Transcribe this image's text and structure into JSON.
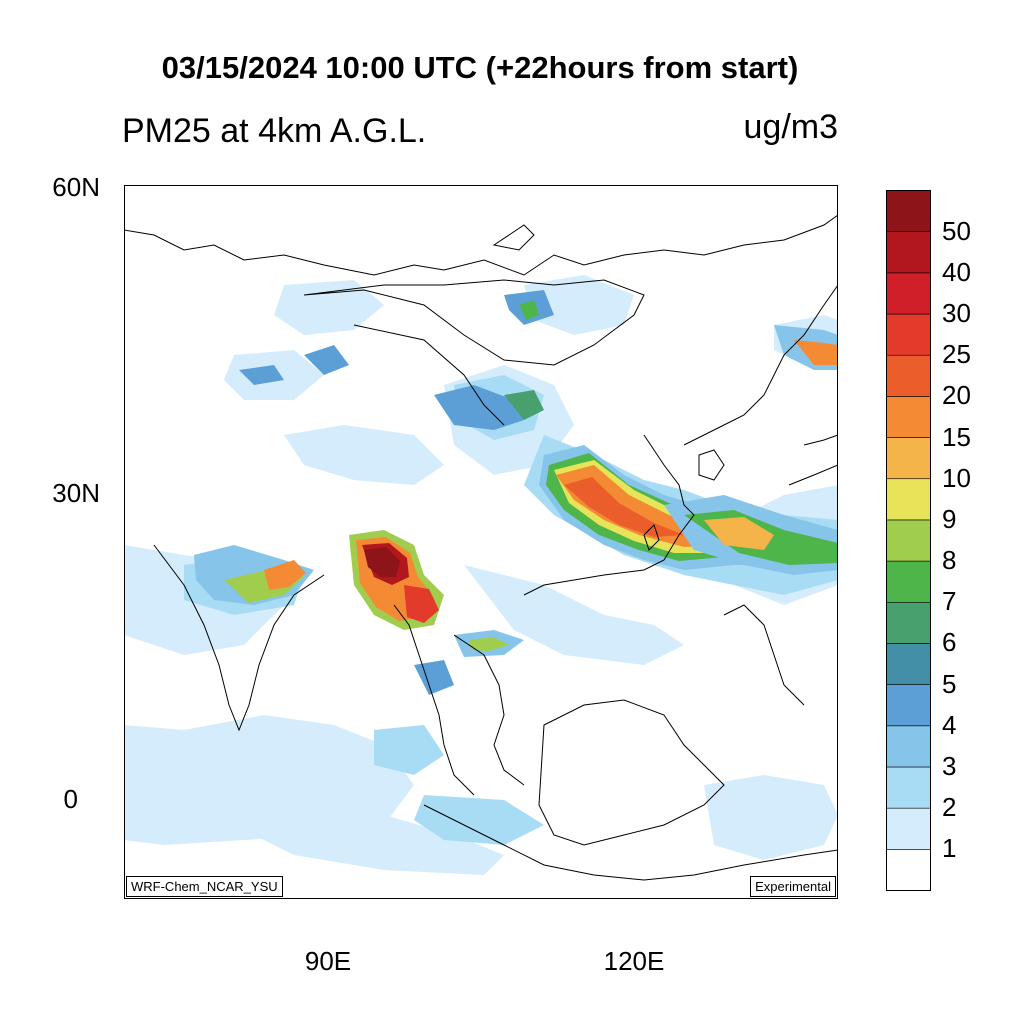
{
  "title": "03/15/2024 10:00 UTC (+22hours from start)",
  "subtitle_left": "PM25 at 4km A.G.L.",
  "units": "ug/m3",
  "model_label": "WRF-Chem_NCAR_YSU",
  "status_label": "Experimental",
  "lat_labels": [
    "60N",
    "30N",
    "0"
  ],
  "lon_labels": [
    "90E",
    "120E"
  ],
  "colorbar": {
    "labels": [
      "1",
      "2",
      "3",
      "4",
      "5",
      "6",
      "7",
      "8",
      "9",
      "10",
      "15",
      "20",
      "25",
      "30",
      "40",
      "50"
    ],
    "colors": [
      "#ffffff",
      "#d4ecfb",
      "#a8dcf4",
      "#86c4ea",
      "#5b9fd6",
      "#448fa8",
      "#47a06e",
      "#4eb54a",
      "#a1cd4f",
      "#e8e45a",
      "#f4b44a",
      "#f58a35",
      "#eb5e2b",
      "#e33b2b",
      "#d11f2a",
      "#b2171e",
      "#8d1418"
    ]
  },
  "colors": {
    "coast": "#000000",
    "frame": "#000000"
  }
}
